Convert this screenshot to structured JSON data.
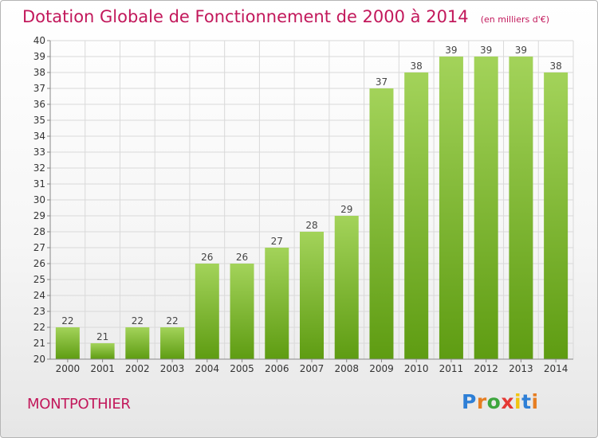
{
  "header": {
    "title": "Dotation Globale de Fonctionnement de 2000 à 2014",
    "subtitle": "(en milliers d'€)"
  },
  "footer": {
    "commune": "MONTPOTHIER",
    "logo_text": "Proxiti"
  },
  "colors": {
    "title": "#c2185b",
    "bar_top": "#a3d35a",
    "bar_bottom": "#5e9c12",
    "grid": "#d9d9d9",
    "axis": "#888888",
    "logo_letters": [
      "#2e7fd6",
      "#e67e22",
      "#3ea63e",
      "#e53935",
      "#f1c40f",
      "#2e7fd6",
      "#e67e22"
    ]
  },
  "chart_data": {
    "type": "bar",
    "categories": [
      "2000",
      "2001",
      "2002",
      "2003",
      "2004",
      "2005",
      "2006",
      "2007",
      "2008",
      "2009",
      "2010",
      "2011",
      "2012",
      "2013",
      "2014"
    ],
    "values": [
      22,
      21,
      22,
      22,
      26,
      26,
      27,
      28,
      29,
      37,
      38,
      39,
      39,
      39,
      38
    ],
    "data_labels": [
      "22",
      "21",
      "22",
      "22",
      "26",
      "26",
      "27",
      "28",
      "29",
      "37",
      "38",
      "39",
      "39",
      "39",
      "38"
    ],
    "ylim": [
      20,
      40
    ],
    "yticks": [
      "20",
      "21",
      "22",
      "23",
      "24",
      "25",
      "26",
      "27",
      "28",
      "29",
      "30",
      "31",
      "32",
      "33",
      "34",
      "35",
      "36",
      "37",
      "38",
      "39",
      "40"
    ],
    "grid": true,
    "legend": "none"
  }
}
